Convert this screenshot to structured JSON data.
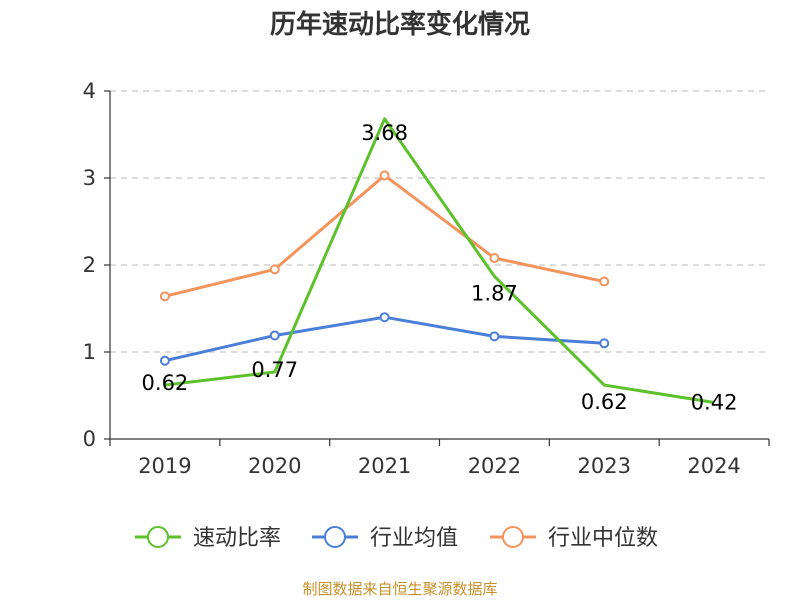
{
  "chart_data": {
    "type": "line",
    "title": "历年速动比率变化情况",
    "categories": [
      "2019",
      "2020",
      "2021",
      "2022",
      "2023",
      "2024"
    ],
    "ylim": [
      0,
      4
    ],
    "yticks": [
      0,
      1,
      2,
      3,
      4
    ],
    "grid": true,
    "legend_position": "bottom",
    "series": [
      {
        "name": "速动比率",
        "color": "#5cc12a",
        "values": [
          0.62,
          0.77,
          3.68,
          1.87,
          0.62,
          0.42
        ],
        "labels": [
          "0.62",
          "0.77",
          "3.68",
          "1.87",
          "0.62",
          "0.42"
        ],
        "show_markers": false
      },
      {
        "name": "行业均值",
        "color": "#4a7fd9",
        "values": [
          0.9,
          1.19,
          1.4,
          1.18,
          1.1,
          null
        ],
        "show_markers": true
      },
      {
        "name": "行业中位数",
        "color": "#f4935c",
        "values": [
          1.64,
          1.95,
          3.03,
          2.08,
          1.81,
          null
        ],
        "show_markers": true
      }
    ]
  },
  "footer": {
    "source": "制图数据来自恒生聚源数据库"
  }
}
